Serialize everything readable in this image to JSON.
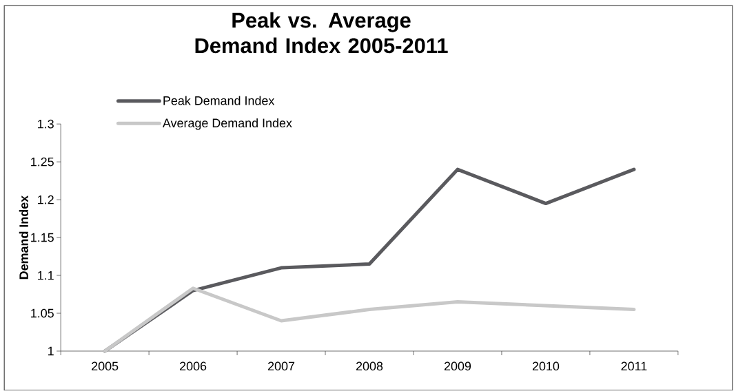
{
  "chart_data": {
    "type": "line",
    "title": "Peak vs. Average Demand Index 2005-2011",
    "ylabel": "Demand Index",
    "categories": [
      "2005",
      "2006",
      "2007",
      "2008",
      "2009",
      "2010",
      "2011"
    ],
    "series": [
      {
        "name": "Peak Demand Index",
        "color": "#5a5a5e",
        "values": [
          1.0,
          1.08,
          1.11,
          1.115,
          1.24,
          1.195,
          1.24
        ]
      },
      {
        "name": "Average Demand Index",
        "color": "#c8c8c8",
        "values": [
          1.0,
          1.083,
          1.04,
          1.055,
          1.065,
          1.06,
          1.055
        ]
      }
    ],
    "ylim": [
      1,
      1.3
    ],
    "yticks": [
      1,
      1.05,
      1.1,
      1.15,
      1.2,
      1.25,
      1.3
    ],
    "legend": "top left",
    "marker": "none",
    "line_style": "solid"
  }
}
